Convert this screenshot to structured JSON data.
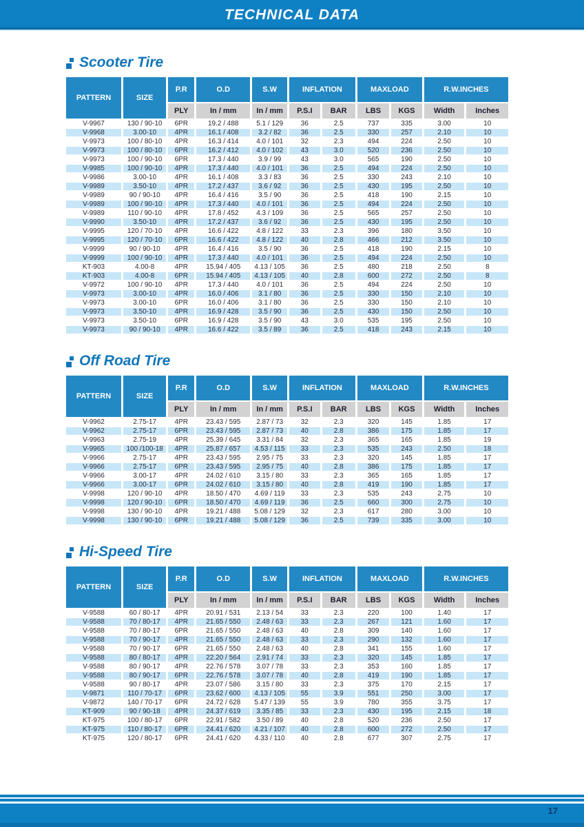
{
  "page": {
    "title": "TECHNICAL DATA",
    "page_number": "17"
  },
  "colors": {
    "banner_blue": "#0e80c4",
    "banner_edge_dark": "#0b6dab",
    "header_cell_blue": "#2289c5",
    "subheader_gray": "#d2d2d2",
    "row_stripe_blue": "#c7e6f8",
    "heading_blue": "#1176ba",
    "page_number_navy": "#0a3a66"
  },
  "columns": {
    "pattern": "PATTERN",
    "size": "SIZE",
    "groups": [
      {
        "label": "P.R",
        "subs": [
          "PLY"
        ]
      },
      {
        "label": "O.D",
        "subs": [
          "In / mm"
        ]
      },
      {
        "label": "S.W",
        "subs": [
          "In / mm"
        ]
      },
      {
        "label": "INFLATION",
        "subs": [
          "P.S.I",
          "BAR"
        ]
      },
      {
        "label": "MAXLOAD",
        "subs": [
          "LBS",
          "KGS"
        ]
      },
      {
        "label": "R.W.INCHES",
        "subs": [
          "Width",
          "Inches"
        ]
      }
    ]
  },
  "sections": [
    {
      "title": "Scooter Tire",
      "rows": [
        [
          "V-9967",
          "130 / 90-10",
          "6PR",
          "19.2 / 488",
          "5.1 / 129",
          "36",
          "2.5",
          "737",
          "335",
          "3.00",
          "10"
        ],
        [
          "V-9968",
          "3.00-10",
          "4PR",
          "16.1 / 408",
          "3.2 / 82",
          "36",
          "2.5",
          "330",
          "257",
          "2.10",
          "10"
        ],
        [
          "V-9973",
          "100 / 80-10",
          "4PR",
          "16.3 / 414",
          "4.0 / 101",
          "32",
          "2.3",
          "494",
          "224",
          "2.50",
          "10"
        ],
        [
          "V-9973",
          "100 / 80-10",
          "6PR",
          "16.2 / 412",
          "4.0 / 102",
          "43",
          "3.0",
          "520",
          "236",
          "2.50",
          "10"
        ],
        [
          "V-9973",
          "100 / 90-10",
          "6PR",
          "17.3 / 440",
          "3.9 / 99",
          "43",
          "3.0",
          "565",
          "190",
          "2.50",
          "10"
        ],
        [
          "V-9985",
          "100 / 90-10",
          "4PR",
          "17.3 / 440",
          "4.0 / 101",
          "36",
          "2.5",
          "494",
          "224",
          "2.50",
          "10"
        ],
        [
          "V-9986",
          "3.00-10",
          "4PR",
          "16.1 / 408",
          "3.3 / 83",
          "36",
          "2.5",
          "330",
          "243",
          "2.10",
          "10"
        ],
        [
          "V-9989",
          "3.50-10",
          "4PR",
          "17.2 / 437",
          "3.6 / 92",
          "36",
          "2.5",
          "430",
          "195",
          "2.50",
          "10"
        ],
        [
          "V-9989",
          "90 / 90-10",
          "4PR",
          "16.4 / 416",
          "3.5 / 90",
          "36",
          "2.5",
          "418",
          "190",
          "2.15",
          "10"
        ],
        [
          "V-9989",
          "100 / 90-10",
          "4PR",
          "17.3 / 440",
          "4.0 / 101",
          "36",
          "2.5",
          "494",
          "224",
          "2.50",
          "10"
        ],
        [
          "V-9989",
          "110 / 90-10",
          "4PR",
          "17.8 / 452",
          "4.3 / 109",
          "36",
          "2.5",
          "565",
          "257",
          "2.50",
          "10"
        ],
        [
          "V-9990",
          "3.50-10",
          "4PR",
          "17.2 / 437",
          "3.6 / 92",
          "36",
          "2.5",
          "430",
          "195",
          "2.50",
          "10"
        ],
        [
          "V-9995",
          "120 / 70-10",
          "4PR",
          "16.6 / 422",
          "4.8 / 122",
          "33",
          "2.3",
          "396",
          "180",
          "3.50",
          "10"
        ],
        [
          "V-9995",
          "120 / 70-10",
          "6PR",
          "16.6 / 422",
          "4.8 / 122",
          "40",
          "2.8",
          "466",
          "212",
          "3.50",
          "10"
        ],
        [
          "V-9999",
          "90 / 90-10",
          "4PR",
          "16.4 / 416",
          "3.5 / 90",
          "36",
          "2.5",
          "418",
          "190",
          "2.15",
          "10"
        ],
        [
          "V-9999",
          "100 / 90-10",
          "4PR",
          "17.3 / 440",
          "4.0 / 101",
          "36",
          "2.5",
          "494",
          "224",
          "2.50",
          "10"
        ],
        [
          "KT-903",
          "4.00-8",
          "4PR",
          "15.94 / 405",
          "4.13 / 105",
          "36",
          "2.5",
          "480",
          "218",
          "2.50",
          "8"
        ],
        [
          "KT-903",
          "4.00-8",
          "6PR",
          "15.94 / 405",
          "4.13 / 105",
          "40",
          "2.8",
          "600",
          "272",
          "2.50",
          "8"
        ],
        [
          "V-9972",
          "100 / 90-10",
          "4PR",
          "17.3 / 440",
          "4.0 / 101",
          "36",
          "2.5",
          "494",
          "224",
          "2.50",
          "10"
        ],
        [
          "V-9973",
          "3.00-10",
          "4PR",
          "16.0 / 406",
          "3.1 / 80",
          "36",
          "2.5",
          "330",
          "150",
          "2.10",
          "10"
        ],
        [
          "V-9973",
          "3.00-10",
          "6PR",
          "16.0 / 406",
          "3.1 / 80",
          "36",
          "2.5",
          "330",
          "150",
          "2.10",
          "10"
        ],
        [
          "V-9973",
          "3.50-10",
          "4PR",
          "16.9 / 428",
          "3.5 / 90",
          "36",
          "2.5",
          "430",
          "150",
          "2.50",
          "10"
        ],
        [
          "V-9973",
          "3.50-10",
          "6PR",
          "16.9 / 428",
          "3.5 / 90",
          "43",
          "3.0",
          "535",
          "195",
          "2.50",
          "10"
        ],
        [
          "V-9973",
          "90 / 90-10",
          "4PR",
          "16.6 / 422",
          "3.5 / 89",
          "36",
          "2.5",
          "418",
          "243",
          "2.15",
          "10"
        ]
      ]
    },
    {
      "title": "Off Road Tire",
      "rows": [
        [
          "V-9962",
          "2.75-17",
          "4PR",
          "23.43 / 595",
          "2.87 / 73",
          "32",
          "2.3",
          "320",
          "145",
          "1.85",
          "17"
        ],
        [
          "V-9962",
          "2.75-17",
          "6PR",
          "23.43 / 595",
          "2.87 / 73",
          "40",
          "2.8",
          "386",
          "175",
          "1.85",
          "17"
        ],
        [
          "V-9963",
          "2.75-19",
          "4PR",
          "25.39 / 645",
          "3.31 / 84",
          "32",
          "2.3",
          "365",
          "165",
          "1.85",
          "19"
        ],
        [
          "V-9965",
          "100 /100-18",
          "4PR",
          "25.87 / 657",
          "4.53 / 115",
          "33",
          "2.3",
          "535",
          "243",
          "2.50",
          "18"
        ],
        [
          "V-9966",
          "2.75-17",
          "4PR",
          "23.43 / 595",
          "2.95 / 75",
          "33",
          "2.3",
          "320",
          "145",
          "1.85",
          "17"
        ],
        [
          "V-9966",
          "2.75-17",
          "6PR",
          "23.43 / 595",
          "2.95 / 75",
          "40",
          "2.8",
          "386",
          "175",
          "1.85",
          "17"
        ],
        [
          "V-9966",
          "3.00-17",
          "4PR",
          "24.02 / 610",
          "3.15 / 80",
          "33",
          "2.3",
          "365",
          "165",
          "1.85",
          "17"
        ],
        [
          "V-9966",
          "3.00-17",
          "6PR",
          "24.02 / 610",
          "3.15 / 80",
          "40",
          "2.8",
          "419",
          "190",
          "1.85",
          "17"
        ],
        [
          "V-9998",
          "120 / 90-10",
          "4PR",
          "18.50 / 470",
          "4.69 / 119",
          "33",
          "2.3",
          "535",
          "243",
          "2.75",
          "10"
        ],
        [
          "V-9998",
          "120 / 90-10",
          "6PR",
          "18.50 / 470",
          "4.69 / 119",
          "36",
          "2.5",
          "660",
          "300",
          "2.75",
          "10"
        ],
        [
          "V-9998",
          "130 / 90-10",
          "4PR",
          "19.21 / 488",
          "5.08 / 129",
          "32",
          "2.3",
          "617",
          "280",
          "3.00",
          "10"
        ],
        [
          "V-9998",
          "130 / 90-10",
          "6PR",
          "19.21 / 488",
          "5.08 / 129",
          "36",
          "2.5",
          "739",
          "335",
          "3.00",
          "10"
        ]
      ]
    },
    {
      "title": "Hi-Speed Tire",
      "rows": [
        [
          "V-9588",
          "60 / 80-17",
          "4PR",
          "20.91 / 531",
          "2.13 / 54",
          "33",
          "2.3",
          "220",
          "100",
          "1.40",
          "17"
        ],
        [
          "V-9588",
          "70 / 80-17",
          "4PR",
          "21.65 / 550",
          "2.48 / 63",
          "33",
          "2.3",
          "267",
          "121",
          "1.60",
          "17"
        ],
        [
          "V-9588",
          "70 / 80-17",
          "6PR",
          "21.65 / 550",
          "2.48 / 63",
          "40",
          "2.8",
          "309",
          "140",
          "1.60",
          "17"
        ],
        [
          "V-9588",
          "70 / 90-17",
          "4PR",
          "21.65 / 550",
          "2.48 / 63",
          "33",
          "2.3",
          "290",
          "132",
          "1.60",
          "17"
        ],
        [
          "V-9588",
          "70 / 90-17",
          "6PR",
          "21.65 / 550",
          "2.48 / 63",
          "40",
          "2.8",
          "341",
          "155",
          "1.60",
          "17"
        ],
        [
          "V-9588",
          "80 / 80-17",
          "4PR",
          "22.20 / 564",
          "2.91 / 74",
          "33",
          "2.3",
          "320",
          "145",
          "1.85",
          "17"
        ],
        [
          "V-9588",
          "80 / 90-17",
          "4PR",
          "22.76 / 578",
          "3.07 / 78",
          "33",
          "2.3",
          "353",
          "160",
          "1.85",
          "17"
        ],
        [
          "V-9588",
          "80 / 90-17",
          "6PR",
          "22.76 / 578",
          "3.07 / 78",
          "40",
          "2.8",
          "419",
          "190",
          "1.85",
          "17"
        ],
        [
          "V-9588",
          "90 / 80-17",
          "4PR",
          "23.07 / 586",
          "3.15 / 80",
          "33",
          "2.3",
          "375",
          "170",
          "2.15",
          "17"
        ],
        [
          "V-9871",
          "110 / 70-17",
          "6PR",
          "23.62 / 600",
          "4.13 / 105",
          "55",
          "3.9",
          "551",
          "250",
          "3.00",
          "17"
        ],
        [
          "V-9872",
          "140 / 70-17",
          "6PR",
          "24.72 / 628",
          "5.47 / 139",
          "55",
          "3.9",
          "780",
          "355",
          "3.75",
          "17"
        ],
        [
          "KT-909",
          "90 / 90-18",
          "4PR",
          "24.37 / 619",
          "3.35 / 85",
          "33",
          "2.3",
          "430",
          "195",
          "2.15",
          "18"
        ],
        [
          "KT-975",
          "100 / 80-17",
          "6PR",
          "22.91 / 582",
          "3.50 / 89",
          "40",
          "2.8",
          "520",
          "236",
          "2.50",
          "17"
        ],
        [
          "KT-975",
          "110 / 80-17",
          "6PR",
          "24.41 / 620",
          "4.21 / 107",
          "40",
          "2.8",
          "600",
          "272",
          "2.50",
          "17"
        ],
        [
          "KT-975",
          "120 / 80-17",
          "6PR",
          "24.41 / 620",
          "4.33 / 110",
          "40",
          "2.8",
          "677",
          "307",
          "2.75",
          "17"
        ]
      ]
    }
  ]
}
